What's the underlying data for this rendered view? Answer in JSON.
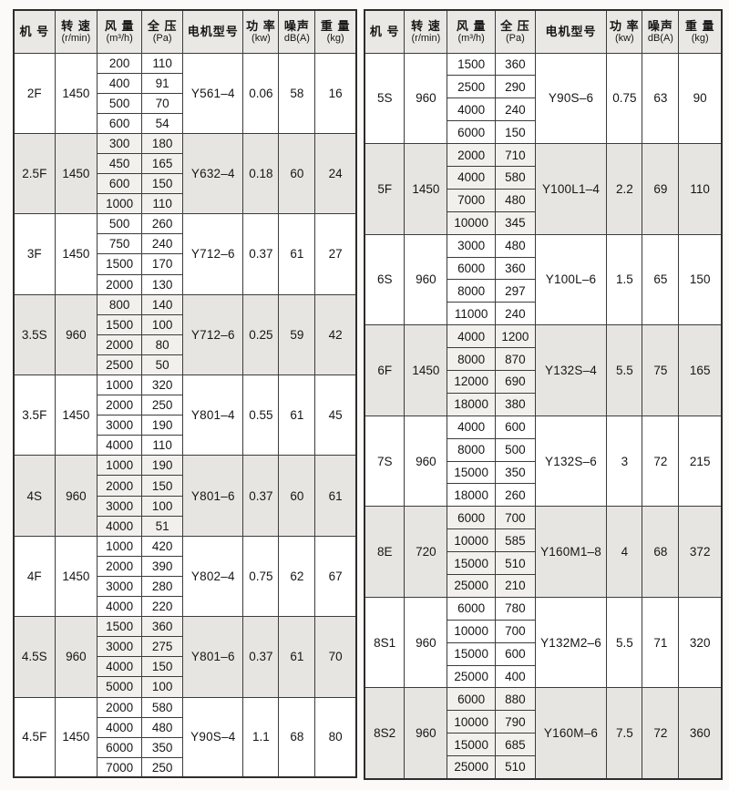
{
  "colors": {
    "page_background": "#fbfaf8",
    "header_background": "#e9e8e5",
    "shaded_group_background": "#e6e5e2",
    "shaded_inner_cell_background": "#f1f0ed",
    "border": "#3c3c3c",
    "text": "#161616"
  },
  "headers": [
    {
      "name": "machine-number",
      "line1": "机 号",
      "line2": ""
    },
    {
      "name": "rotation-speed",
      "line1": "转 速",
      "line2": "(r/min)"
    },
    {
      "name": "air-flow",
      "line1": "风 量",
      "line2": "(m³/h)"
    },
    {
      "name": "total-pressure",
      "line1": "全 压",
      "line2": "(Pa)"
    },
    {
      "name": "motor-model",
      "line1": "电机型号",
      "line2": ""
    },
    {
      "name": "power",
      "line1": "功 率",
      "line2": "(kw)"
    },
    {
      "name": "noise",
      "line1": "噪声",
      "line2": "dB(A)"
    },
    {
      "name": "weight",
      "line1": "重 量",
      "line2": "(kg)"
    }
  ],
  "left_table": {
    "groups": [
      {
        "model": "2F",
        "speed": "1450",
        "motor": "Y561–4",
        "power": "0.06",
        "noise": "58",
        "weight": "16",
        "shaded": false,
        "rows": [
          {
            "flow": "200",
            "pressure": "110"
          },
          {
            "flow": "400",
            "pressure": "91"
          },
          {
            "flow": "500",
            "pressure": "70"
          },
          {
            "flow": "600",
            "pressure": "54"
          }
        ]
      },
      {
        "model": "2.5F",
        "speed": "1450",
        "motor": "Y632–4",
        "power": "0.18",
        "noise": "60",
        "weight": "24",
        "shaded": true,
        "rows": [
          {
            "flow": "300",
            "pressure": "180"
          },
          {
            "flow": "450",
            "pressure": "165"
          },
          {
            "flow": "600",
            "pressure": "150"
          },
          {
            "flow": "1000",
            "pressure": "110"
          }
        ]
      },
      {
        "model": "3F",
        "speed": "1450",
        "motor": "Y712–6",
        "power": "0.37",
        "noise": "61",
        "weight": "27",
        "shaded": false,
        "rows": [
          {
            "flow": "500",
            "pressure": "260"
          },
          {
            "flow": "750",
            "pressure": "240"
          },
          {
            "flow": "1500",
            "pressure": "170"
          },
          {
            "flow": "2000",
            "pressure": "130"
          }
        ]
      },
      {
        "model": "3.5S",
        "speed": "960",
        "motor": "Y712–6",
        "power": "0.25",
        "noise": "59",
        "weight": "42",
        "shaded": true,
        "rows": [
          {
            "flow": "800",
            "pressure": "140"
          },
          {
            "flow": "1500",
            "pressure": "100"
          },
          {
            "flow": "2000",
            "pressure": "80"
          },
          {
            "flow": "2500",
            "pressure": "50"
          }
        ]
      },
      {
        "model": "3.5F",
        "speed": "1450",
        "motor": "Y801–4",
        "power": "0.55",
        "noise": "61",
        "weight": "45",
        "shaded": false,
        "rows": [
          {
            "flow": "1000",
            "pressure": "320"
          },
          {
            "flow": "2000",
            "pressure": "250"
          },
          {
            "flow": "3000",
            "pressure": "190"
          },
          {
            "flow": "4000",
            "pressure": "110"
          }
        ]
      },
      {
        "model": "4S",
        "speed": "960",
        "motor": "Y801–6",
        "power": "0.37",
        "noise": "60",
        "weight": "61",
        "shaded": true,
        "rows": [
          {
            "flow": "1000",
            "pressure": "190"
          },
          {
            "flow": "2000",
            "pressure": "150"
          },
          {
            "flow": "3000",
            "pressure": "100"
          },
          {
            "flow": "4000",
            "pressure": "51"
          }
        ]
      },
      {
        "model": "4F",
        "speed": "1450",
        "motor": "Y802–4",
        "power": "0.75",
        "noise": "62",
        "weight": "67",
        "shaded": false,
        "rows": [
          {
            "flow": "1000",
            "pressure": "420"
          },
          {
            "flow": "2000",
            "pressure": "390"
          },
          {
            "flow": "3000",
            "pressure": "280"
          },
          {
            "flow": "4000",
            "pressure": "220"
          }
        ]
      },
      {
        "model": "4.5S",
        "speed": "960",
        "motor": "Y801–6",
        "power": "0.37",
        "noise": "61",
        "weight": "70",
        "shaded": true,
        "rows": [
          {
            "flow": "1500",
            "pressure": "360"
          },
          {
            "flow": "3000",
            "pressure": "275"
          },
          {
            "flow": "4000",
            "pressure": "150"
          },
          {
            "flow": "5000",
            "pressure": "100"
          }
        ]
      },
      {
        "model": "4.5F",
        "speed": "1450",
        "motor": "Y90S–4",
        "power": "1.1",
        "noise": "68",
        "weight": "80",
        "shaded": false,
        "rows": [
          {
            "flow": "2000",
            "pressure": "580"
          },
          {
            "flow": "4000",
            "pressure": "480"
          },
          {
            "flow": "6000",
            "pressure": "350"
          },
          {
            "flow": "7000",
            "pressure": "250"
          }
        ]
      }
    ]
  },
  "right_table": {
    "groups": [
      {
        "model": "5S",
        "speed": "960",
        "motor": "Y90S–6",
        "power": "0.75",
        "noise": "63",
        "weight": "90",
        "shaded": false,
        "rows": [
          {
            "flow": "1500",
            "pressure": "360"
          },
          {
            "flow": "2500",
            "pressure": "290"
          },
          {
            "flow": "4000",
            "pressure": "240"
          },
          {
            "flow": "6000",
            "pressure": "150"
          }
        ]
      },
      {
        "model": "5F",
        "speed": "1450",
        "motor": "Y100L1–4",
        "power": "2.2",
        "noise": "69",
        "weight": "110",
        "shaded": true,
        "rows": [
          {
            "flow": "2000",
            "pressure": "710"
          },
          {
            "flow": "4000",
            "pressure": "580"
          },
          {
            "flow": "7000",
            "pressure": "480"
          },
          {
            "flow": "10000",
            "pressure": "345"
          }
        ]
      },
      {
        "model": "6S",
        "speed": "960",
        "motor": "Y100L–6",
        "power": "1.5",
        "noise": "65",
        "weight": "150",
        "shaded": false,
        "rows": [
          {
            "flow": "3000",
            "pressure": "480"
          },
          {
            "flow": "6000",
            "pressure": "360"
          },
          {
            "flow": "8000",
            "pressure": "297"
          },
          {
            "flow": "11000",
            "pressure": "240"
          }
        ]
      },
      {
        "model": "6F",
        "speed": "1450",
        "motor": "Y132S–4",
        "power": "5.5",
        "noise": "75",
        "weight": "165",
        "shaded": true,
        "rows": [
          {
            "flow": "4000",
            "pressure": "1200"
          },
          {
            "flow": "8000",
            "pressure": "870"
          },
          {
            "flow": "12000",
            "pressure": "690"
          },
          {
            "flow": "18000",
            "pressure": "380"
          }
        ]
      },
      {
        "model": "7S",
        "speed": "960",
        "motor": "Y132S–6",
        "power": "3",
        "noise": "72",
        "weight": "215",
        "shaded": false,
        "rows": [
          {
            "flow": "4000",
            "pressure": "600"
          },
          {
            "flow": "8000",
            "pressure": "500"
          },
          {
            "flow": "15000",
            "pressure": "350"
          },
          {
            "flow": "18000",
            "pressure": "260"
          }
        ]
      },
      {
        "model": "8E",
        "speed": "720",
        "motor": "Y160M1–8",
        "power": "4",
        "noise": "68",
        "weight": "372",
        "shaded": true,
        "rows": [
          {
            "flow": "6000",
            "pressure": "700"
          },
          {
            "flow": "10000",
            "pressure": "585"
          },
          {
            "flow": "15000",
            "pressure": "510"
          },
          {
            "flow": "25000",
            "pressure": "210"
          }
        ]
      },
      {
        "model": "8S1",
        "speed": "960",
        "motor": "Y132M2–6",
        "power": "5.5",
        "noise": "71",
        "weight": "320",
        "shaded": false,
        "rows": [
          {
            "flow": "6000",
            "pressure": "780"
          },
          {
            "flow": "10000",
            "pressure": "700"
          },
          {
            "flow": "15000",
            "pressure": "600"
          },
          {
            "flow": "25000",
            "pressure": "400"
          }
        ]
      },
      {
        "model": "8S2",
        "speed": "960",
        "motor": "Y160M–6",
        "power": "7.5",
        "noise": "72",
        "weight": "360",
        "shaded": true,
        "rows": [
          {
            "flow": "6000",
            "pressure": "880"
          },
          {
            "flow": "10000",
            "pressure": "790"
          },
          {
            "flow": "15000",
            "pressure": "685"
          },
          {
            "flow": "25000",
            "pressure": "510"
          }
        ]
      }
    ]
  }
}
